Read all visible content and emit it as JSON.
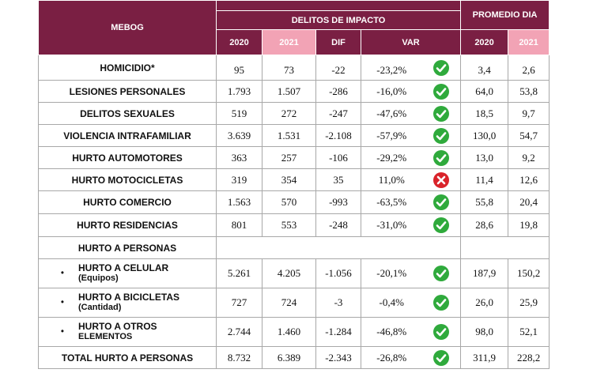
{
  "header": {
    "mebog": "MEBOG",
    "delitos": "DELITOS DE IMPACTO",
    "promedio": "PROMEDIO DIA",
    "y2020": "2020",
    "y2021": "2021",
    "dif": "DIF",
    "var": "VAR",
    "p2020": "2020",
    "p2021": "2021"
  },
  "colors": {
    "header": "#7a1f43",
    "header_pink": "#f2a3b5",
    "ok": "#2faa3c",
    "bad": "#d9232a"
  },
  "rows": [
    {
      "label": "HOMICIDIO*",
      "sub": "",
      "bullet": false,
      "v2020": "95",
      "v2021": "73",
      "dif": "-22",
      "var": "-23,2%",
      "status": "check-icon",
      "p2020": "3,4",
      "p2021": "2,6"
    },
    {
      "label": "LESIONES PERSONALES",
      "sub": "",
      "bullet": false,
      "v2020": "1.793",
      "v2021": "1.507",
      "dif": "-286",
      "var": "-16,0%",
      "status": "check-icon",
      "p2020": "64,0",
      "p2021": "53,8"
    },
    {
      "label": "DELITOS SEXUALES",
      "sub": "",
      "bullet": false,
      "v2020": "519",
      "v2021": "272",
      "dif": "-247",
      "var": "-47,6%",
      "status": "check-icon",
      "p2020": "18,5",
      "p2021": "9,7"
    },
    {
      "label": "VIOLENCIA INTRAFAMILIAR",
      "sub": "",
      "bullet": false,
      "v2020": "3.639",
      "v2021": "1.531",
      "dif": "-2.108",
      "var": "-57,9%",
      "status": "check-icon",
      "p2020": "130,0",
      "p2021": "54,7"
    },
    {
      "label": "HURTO AUTOMOTORES",
      "sub": "",
      "bullet": false,
      "v2020": "363",
      "v2021": "257",
      "dif": "-106",
      "var": "-29,2%",
      "status": "check-icon",
      "p2020": "13,0",
      "p2021": "9,2"
    },
    {
      "label": "HURTO MOTOCICLETAS",
      "sub": "",
      "bullet": false,
      "v2020": "319",
      "v2021": "354",
      "dif": "35",
      "var": "11,0%",
      "status": "cross-icon",
      "p2020": "11,4",
      "p2021": "12,6"
    },
    {
      "label": "HURTO COMERCIO",
      "sub": "",
      "bullet": false,
      "v2020": "1.563",
      "v2021": "570",
      "dif": "-993",
      "var": "-63,5%",
      "status": "check-icon",
      "p2020": "55,8",
      "p2021": "20,4"
    },
    {
      "label": "HURTO RESIDENCIAS",
      "sub": "",
      "bullet": false,
      "v2020": "801",
      "v2021": "553",
      "dif": "-248",
      "var": "-31,0%",
      "status": "check-icon",
      "p2020": "28,6",
      "p2021": "19,8"
    },
    {
      "label": "HURTO A PERSONAS",
      "sub": "",
      "bullet": false,
      "section": true
    },
    {
      "label": "HURTO A CELULAR",
      "sub": "(Equipos)",
      "bullet": true,
      "v2020": "5.261",
      "v2021": "4.205",
      "dif": "-1.056",
      "var": "-20,1%",
      "status": "check-icon",
      "p2020": "187,9",
      "p2021": "150,2"
    },
    {
      "label": "HURTO A BICICLETAS",
      "sub": "(Cantidad)",
      "bullet": true,
      "v2020": "727",
      "v2021": "724",
      "dif": "-3",
      "var": "-0,4%",
      "status": "check-icon",
      "p2020": "26,0",
      "p2021": "25,9"
    },
    {
      "label": "HURTO A OTROS",
      "sub": "ELEMENTOS",
      "bullet": true,
      "v2020": "2.744",
      "v2021": "1.460",
      "dif": "-1.284",
      "var": "-46,8%",
      "status": "check-icon",
      "p2020": "98,0",
      "p2021": "52,1"
    },
    {
      "label": "TOTAL HURTO A PERSONAS",
      "sub": "",
      "bullet": false,
      "v2020": "8.732",
      "v2021": "6.389",
      "dif": "-2.343",
      "var": "-26,8%",
      "status": "check-icon",
      "p2020": "311,9",
      "p2021": "228,2"
    }
  ]
}
